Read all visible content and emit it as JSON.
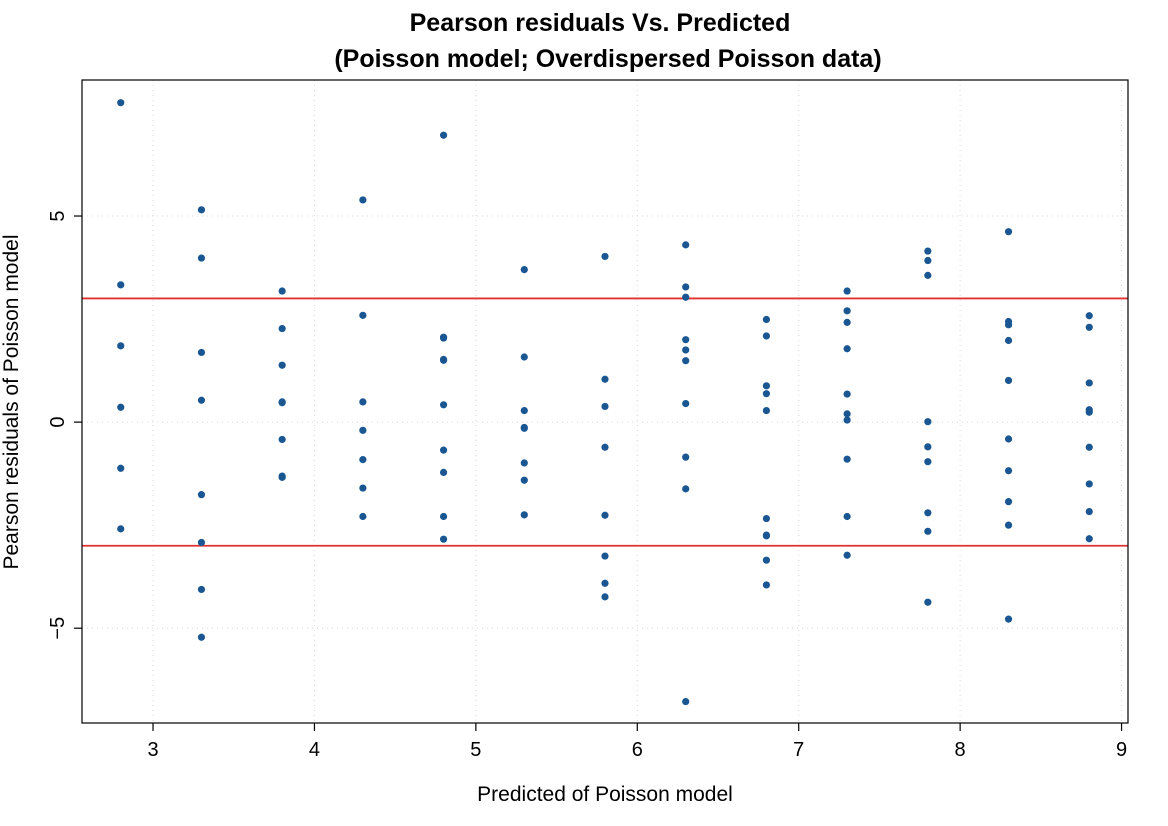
{
  "chart_data": {
    "type": "scatter",
    "title": "Pearson residuals Vs. Predicted",
    "subtitle": "(Poisson model; Overdispersed Poisson data)",
    "xlabel": "Predicted of Poisson model",
    "ylabel": "Pearson residuals of Poisson model",
    "xlim": [
      2.56,
      9.04
    ],
    "ylim": [
      -7.3,
      8.3
    ],
    "xticks": [
      3,
      4,
      5,
      6,
      7,
      8,
      9
    ],
    "yticks": [
      -5,
      0,
      5
    ],
    "grid": true,
    "point_color": "#1a5792",
    "reference_line_color": "#e03030",
    "reference_lines": [
      3,
      -3
    ],
    "points": [
      {
        "x": 2.8,
        "y": 7.75
      },
      {
        "x": 2.8,
        "y": 3.33
      },
      {
        "x": 2.8,
        "y": 1.85
      },
      {
        "x": 2.8,
        "y": 0.36
      },
      {
        "x": 2.8,
        "y": -1.12
      },
      {
        "x": 2.8,
        "y": -2.59
      },
      {
        "x": 3.3,
        "y": 5.15
      },
      {
        "x": 3.3,
        "y": 3.98
      },
      {
        "x": 3.3,
        "y": 1.69
      },
      {
        "x": 3.3,
        "y": 0.53
      },
      {
        "x": 3.3,
        "y": -1.76
      },
      {
        "x": 3.3,
        "y": -2.92
      },
      {
        "x": 3.3,
        "y": -4.06
      },
      {
        "x": 3.3,
        "y": -5.22
      },
      {
        "x": 3.8,
        "y": 3.18
      },
      {
        "x": 3.8,
        "y": 2.27
      },
      {
        "x": 3.8,
        "y": 1.38
      },
      {
        "x": 3.8,
        "y": 0.49
      },
      {
        "x": 3.8,
        "y": 0.47
      },
      {
        "x": 3.8,
        "y": -0.42
      },
      {
        "x": 3.8,
        "y": -1.31
      },
      {
        "x": 3.8,
        "y": -1.34
      },
      {
        "x": 4.3,
        "y": 5.39
      },
      {
        "x": 4.3,
        "y": 2.59
      },
      {
        "x": 4.3,
        "y": 0.49
      },
      {
        "x": 4.3,
        "y": -0.2
      },
      {
        "x": 4.3,
        "y": -0.91
      },
      {
        "x": 4.3,
        "y": -1.6
      },
      {
        "x": 4.3,
        "y": -2.29
      },
      {
        "x": 4.8,
        "y": 6.96
      },
      {
        "x": 4.8,
        "y": 2.06
      },
      {
        "x": 4.8,
        "y": 2.04
      },
      {
        "x": 4.8,
        "y": 1.52
      },
      {
        "x": 4.8,
        "y": 1.5
      },
      {
        "x": 4.8,
        "y": 0.42
      },
      {
        "x": 4.8,
        "y": -0.68
      },
      {
        "x": 4.8,
        "y": -1.22
      },
      {
        "x": 4.8,
        "y": -2.29
      },
      {
        "x": 4.8,
        "y": -2.84
      },
      {
        "x": 5.3,
        "y": 3.7
      },
      {
        "x": 5.3,
        "y": 1.58
      },
      {
        "x": 5.3,
        "y": 0.28
      },
      {
        "x": 5.3,
        "y": -0.13
      },
      {
        "x": 5.3,
        "y": -0.15
      },
      {
        "x": 5.3,
        "y": -0.99
      },
      {
        "x": 5.3,
        "y": -1.41
      },
      {
        "x": 5.3,
        "y": -2.25
      },
      {
        "x": 5.8,
        "y": 4.02
      },
      {
        "x": 5.8,
        "y": 1.04
      },
      {
        "x": 5.8,
        "y": 0.38
      },
      {
        "x": 5.8,
        "y": -0.61
      },
      {
        "x": 5.8,
        "y": -2.26
      },
      {
        "x": 5.8,
        "y": -3.25
      },
      {
        "x": 5.8,
        "y": -3.91
      },
      {
        "x": 5.8,
        "y": -4.24
      },
      {
        "x": 6.3,
        "y": 4.3
      },
      {
        "x": 6.3,
        "y": 3.28
      },
      {
        "x": 6.3,
        "y": 3.03
      },
      {
        "x": 6.3,
        "y": 2.0
      },
      {
        "x": 6.3,
        "y": 1.75
      },
      {
        "x": 6.3,
        "y": 1.49
      },
      {
        "x": 6.3,
        "y": 0.45
      },
      {
        "x": 6.3,
        "y": -0.85
      },
      {
        "x": 6.3,
        "y": -1.62
      },
      {
        "x": 6.3,
        "y": -6.78
      },
      {
        "x": 6.8,
        "y": 2.49
      },
      {
        "x": 6.8,
        "y": 2.09
      },
      {
        "x": 6.8,
        "y": 0.88
      },
      {
        "x": 6.8,
        "y": 0.69
      },
      {
        "x": 6.8,
        "y": 0.28
      },
      {
        "x": 6.8,
        "y": -2.34
      },
      {
        "x": 6.8,
        "y": -2.74
      },
      {
        "x": 6.8,
        "y": -2.76
      },
      {
        "x": 6.8,
        "y": -3.35
      },
      {
        "x": 6.8,
        "y": -3.95
      },
      {
        "x": 7.3,
        "y": 3.18
      },
      {
        "x": 7.3,
        "y": 2.7
      },
      {
        "x": 7.3,
        "y": 2.42
      },
      {
        "x": 7.3,
        "y": 1.78
      },
      {
        "x": 7.3,
        "y": 0.68
      },
      {
        "x": 7.3,
        "y": 0.2
      },
      {
        "x": 7.3,
        "y": 0.05
      },
      {
        "x": 7.3,
        "y": -0.9
      },
      {
        "x": 7.3,
        "y": -2.29
      },
      {
        "x": 7.3,
        "y": -3.23
      },
      {
        "x": 7.8,
        "y": 4.15
      },
      {
        "x": 7.8,
        "y": 3.92
      },
      {
        "x": 7.8,
        "y": 3.56
      },
      {
        "x": 7.8,
        "y": 0.01
      },
      {
        "x": 7.8,
        "y": -0.6
      },
      {
        "x": 7.8,
        "y": -0.96
      },
      {
        "x": 7.8,
        "y": -2.2
      },
      {
        "x": 7.8,
        "y": -2.65
      },
      {
        "x": 7.8,
        "y": -4.37
      },
      {
        "x": 8.3,
        "y": 4.62
      },
      {
        "x": 8.3,
        "y": 2.44
      },
      {
        "x": 8.3,
        "y": 2.36
      },
      {
        "x": 8.3,
        "y": 1.98
      },
      {
        "x": 8.3,
        "y": 1.01
      },
      {
        "x": 8.3,
        "y": -0.41
      },
      {
        "x": 8.3,
        "y": -1.18
      },
      {
        "x": 8.3,
        "y": -1.93
      },
      {
        "x": 8.3,
        "y": -2.5
      },
      {
        "x": 8.3,
        "y": -4.78
      },
      {
        "x": 8.8,
        "y": 2.58
      },
      {
        "x": 8.8,
        "y": 2.3
      },
      {
        "x": 8.8,
        "y": 0.95
      },
      {
        "x": 8.8,
        "y": 0.3
      },
      {
        "x": 8.8,
        "y": 0.24
      },
      {
        "x": 8.8,
        "y": -0.61
      },
      {
        "x": 8.8,
        "y": -1.5
      },
      {
        "x": 8.8,
        "y": -2.17
      },
      {
        "x": 8.8,
        "y": -2.83
      }
    ]
  }
}
